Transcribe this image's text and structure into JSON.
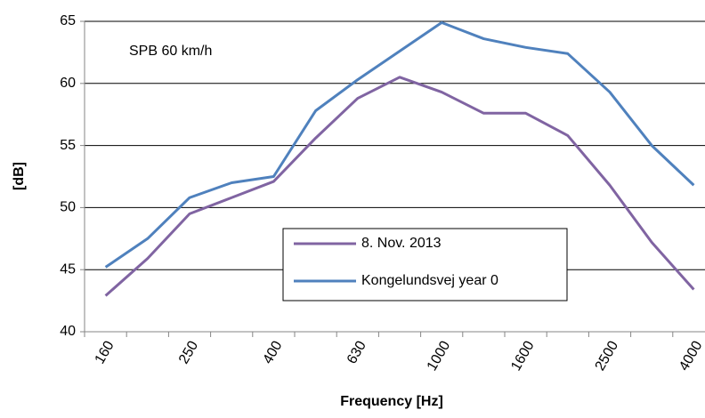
{
  "chart_data": {
    "type": "line",
    "annotation": "SPB 60 km/h",
    "x_label": "Frequency [Hz]",
    "y_label": "[dB]",
    "categories": [
      "160",
      null,
      "250",
      null,
      "400",
      null,
      "630",
      null,
      "1000",
      null,
      "1600",
      null,
      "2500",
      null,
      "4000"
    ],
    "series": [
      {
        "name": "8. Nov. 2013",
        "color": "#8064a2",
        "values": [
          42.9,
          45.9,
          49.5,
          50.8,
          52.1,
          55.6,
          58.8,
          60.5,
          59.3,
          57.6,
          57.6,
          55.8,
          51.8,
          47.2,
          43.4
        ]
      },
      {
        "name": "Kongelundsvej year 0",
        "color": "#4f81bd",
        "values": [
          45.2,
          47.5,
          50.8,
          52.0,
          52.5,
          57.8,
          60.3,
          62.6,
          64.9,
          63.6,
          62.9,
          62.4,
          59.3,
          55.0,
          51.8
        ]
      }
    ],
    "ylim": [
      40,
      65
    ],
    "yticks": [
      40,
      45,
      50,
      55,
      60,
      65
    ],
    "grid": true
  }
}
